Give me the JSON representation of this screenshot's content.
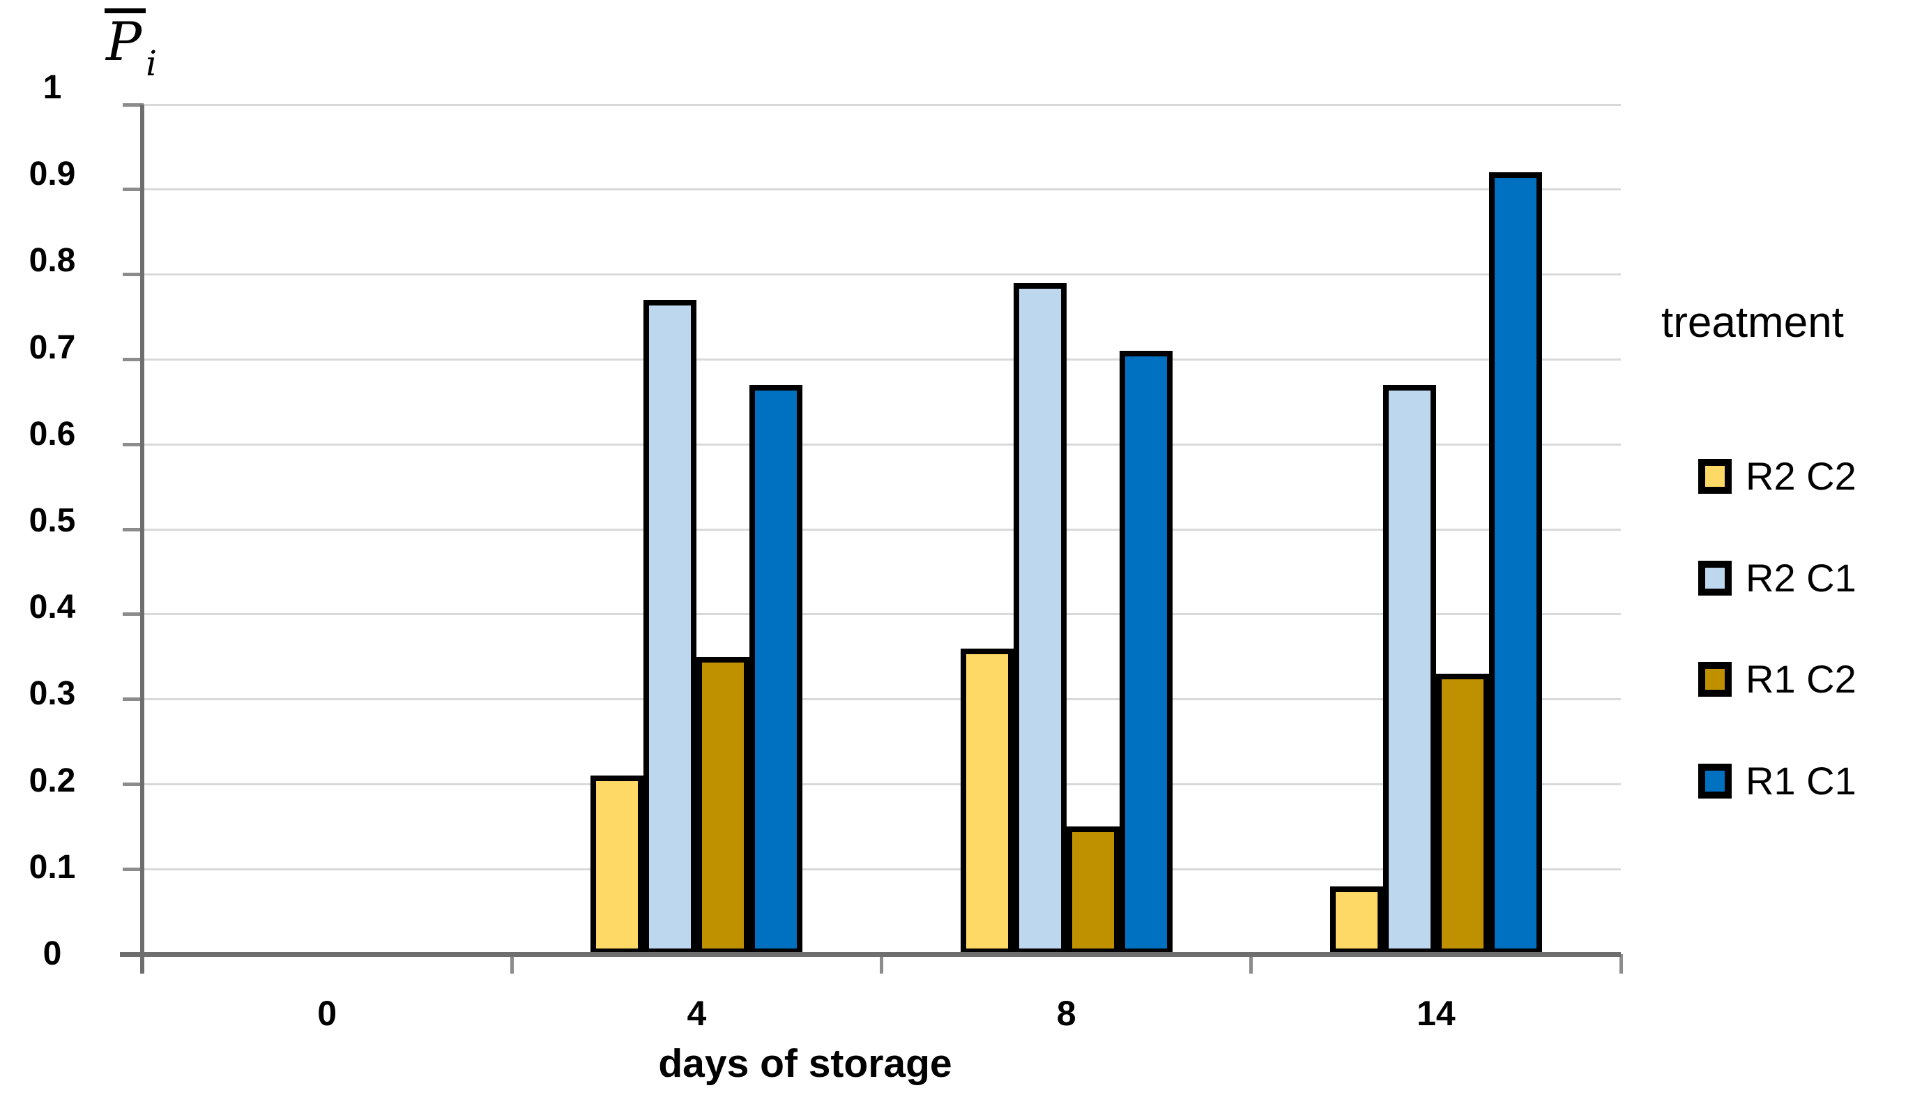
{
  "y_axis": {
    "symbol": "P",
    "subscript": "i"
  },
  "chart_data": {
    "type": "bar",
    "title": "",
    "xlabel": "days of storage",
    "ylabel": "P̄i",
    "categories": [
      "0",
      "4",
      "8",
      "14"
    ],
    "series": [
      {
        "name": "R2 C2",
        "color": "#FFD966",
        "values": [
          0,
          0.21,
          0.36,
          0.08
        ]
      },
      {
        "name": "R2 C1",
        "color": "#BDD7EE",
        "values": [
          0,
          0.77,
          0.79,
          0.67
        ]
      },
      {
        "name": "R1 C2",
        "color": "#BF9000",
        "values": [
          0,
          0.35,
          0.15,
          0.33
        ]
      },
      {
        "name": "R1 C1",
        "color": "#0070C0",
        "values": [
          0,
          0.67,
          0.71,
          0.92
        ]
      }
    ],
    "ylim": [
      0,
      1
    ],
    "y_ticks": [
      0,
      0.1,
      0.2,
      0.3,
      0.4,
      0.5,
      0.6,
      0.7,
      0.8,
      0.9,
      1
    ],
    "y_tick_labels": [
      "0",
      "0.1",
      "0.2",
      "0.3",
      "0.4",
      "0.5",
      "0.6",
      "0.7",
      "0.8",
      "0.9",
      "1"
    ],
    "grid": true,
    "legend_title": "treatment",
    "legend_position": "right",
    "gridline_color": "#D9D9D9",
    "axis_color": "#6E6E6E",
    "bar_border_color": "#000000"
  }
}
